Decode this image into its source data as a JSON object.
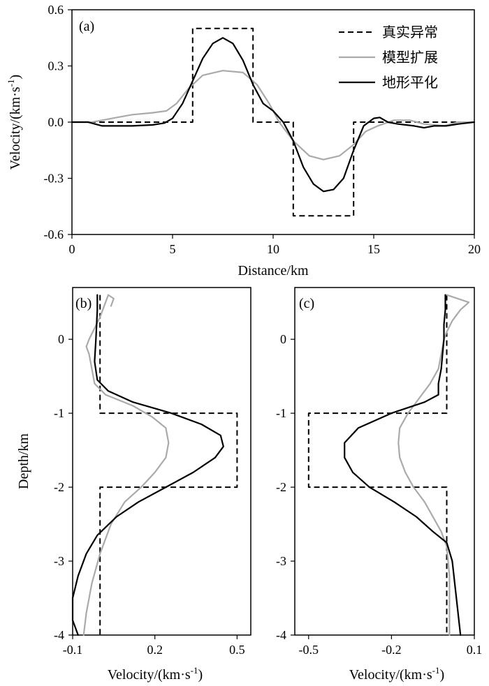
{
  "chart_data": [
    {
      "type": "line",
      "panel_label": "(a)",
      "xlabel": "Distance/km",
      "ylabel": "Velocity/(km·s",
      "ylabel_sup": "-1",
      "ylabel_end": ")",
      "xlim": [
        0,
        20
      ],
      "ylim": [
        -0.6,
        0.6
      ],
      "xticks": [
        0,
        5,
        10,
        15,
        20
      ],
      "xtick_labels": [
        "0",
        "5",
        "10",
        "15",
        "20"
      ],
      "yticks": [
        -0.6,
        -0.3,
        0.0,
        0.3,
        0.6
      ],
      "ytick_labels": [
        "-0.6",
        "-0.3",
        "0.0",
        "0.3",
        "0.6"
      ],
      "legend_position": "top-right",
      "series": [
        {
          "name": "真实异常",
          "color": "#000000",
          "style": "dashed",
          "points": [
            [
              0,
              0
            ],
            [
              6,
              0
            ],
            [
              6,
              0.5
            ],
            [
              9,
              0.5
            ],
            [
              9,
              0
            ],
            [
              11,
              0
            ],
            [
              11,
              -0.5
            ],
            [
              14,
              -0.5
            ],
            [
              14,
              0
            ],
            [
              20,
              0
            ]
          ]
        },
        {
          "name": "模型扩展",
          "color": "#aaaaaa",
          "style": "solid",
          "points": [
            [
              0,
              0
            ],
            [
              1,
              0
            ],
            [
              1.5,
              0.01
            ],
            [
              2,
              0.02
            ],
            [
              3,
              0.04
            ],
            [
              4,
              0.05
            ],
            [
              4.7,
              0.06
            ],
            [
              5.2,
              0.1
            ],
            [
              5.8,
              0.18
            ],
            [
              6.5,
              0.25
            ],
            [
              7.5,
              0.275
            ],
            [
              8.5,
              0.265
            ],
            [
              9.2,
              0.2
            ],
            [
              9.8,
              0.1
            ],
            [
              10.3,
              0.0
            ],
            [
              11,
              -0.1
            ],
            [
              11.8,
              -0.18
            ],
            [
              12.5,
              -0.2
            ],
            [
              13.3,
              -0.18
            ],
            [
              14,
              -0.12
            ],
            [
              14.6,
              -0.05
            ],
            [
              15.2,
              -0.02
            ],
            [
              16,
              0.01
            ],
            [
              16.8,
              0.01
            ],
            [
              17.5,
              -0.01
            ],
            [
              18.5,
              -0.02
            ],
            [
              19.2,
              0
            ],
            [
              20,
              0
            ]
          ]
        },
        {
          "name": "地形平化",
          "color": "#000000",
          "style": "solid",
          "points": [
            [
              0,
              0
            ],
            [
              0.8,
              0
            ],
            [
              1.5,
              -0.02
            ],
            [
              2,
              -0.02
            ],
            [
              3,
              -0.02
            ],
            [
              4,
              -0.015
            ],
            [
              4.6,
              -0.005
            ],
            [
              5,
              0.02
            ],
            [
              5.5,
              0.1
            ],
            [
              6,
              0.22
            ],
            [
              6.5,
              0.34
            ],
            [
              7,
              0.42
            ],
            [
              7.5,
              0.45
            ],
            [
              8,
              0.42
            ],
            [
              8.5,
              0.33
            ],
            [
              9,
              0.2
            ],
            [
              9.5,
              0.1
            ],
            [
              10,
              0.06
            ],
            [
              10.5,
              0
            ],
            [
              11,
              -0.1
            ],
            [
              11.5,
              -0.24
            ],
            [
              12,
              -0.33
            ],
            [
              12.5,
              -0.37
            ],
            [
              13,
              -0.36
            ],
            [
              13.5,
              -0.3
            ],
            [
              14,
              -0.15
            ],
            [
              14.5,
              -0.02
            ],
            [
              15,
              0.02
            ],
            [
              15.3,
              0.025
            ],
            [
              15.7,
              0
            ],
            [
              16.2,
              -0.01
            ],
            [
              17,
              -0.02
            ],
            [
              17.5,
              -0.03
            ],
            [
              18,
              -0.02
            ],
            [
              18.6,
              -0.02
            ],
            [
              19.2,
              -0.01
            ],
            [
              20,
              0
            ]
          ]
        }
      ]
    },
    {
      "type": "line",
      "panel_label": "(b)",
      "xlabel": "Velocity/(km·s",
      "xlabel_sup": "-1",
      "xlabel_end": ")",
      "ylabel": "Depth/km",
      "xlim": [
        -0.1,
        0.55
      ],
      "ylim": [
        -4,
        0.7
      ],
      "xticks": [
        -0.1,
        0.2,
        0.5
      ],
      "xtick_labels": [
        "-0.1",
        "0.2",
        "0.5"
      ],
      "yticks": [
        -4,
        -3,
        -2,
        -1,
        0
      ],
      "ytick_labels": [
        "-4",
        "-3",
        "-2",
        "-1",
        "0"
      ],
      "series": [
        {
          "color": "#000000",
          "style": "dashed",
          "points": [
            [
              0,
              0.6
            ],
            [
              0,
              -1
            ],
            [
              0.5,
              -1
            ],
            [
              0.5,
              -2
            ],
            [
              0,
              -2
            ],
            [
              0,
              -4
            ]
          ]
        },
        {
          "color": "#aaaaaa",
          "style": "solid",
          "points": [
            [
              0.04,
              0.45
            ],
            [
              0.05,
              0.55
            ],
            [
              0.03,
              0.6
            ],
            [
              0.02,
              0.5
            ],
            [
              0.0,
              0.3
            ],
            [
              -0.02,
              0.15
            ],
            [
              -0.04,
              0
            ],
            [
              -0.05,
              -0.1
            ],
            [
              -0.04,
              -0.2
            ],
            [
              -0.03,
              -0.4
            ],
            [
              -0.02,
              -0.6
            ],
            [
              0.02,
              -0.75
            ],
            [
              0.12,
              -0.9
            ],
            [
              0.19,
              -1.05
            ],
            [
              0.24,
              -1.2
            ],
            [
              0.25,
              -1.4
            ],
            [
              0.24,
              -1.6
            ],
            [
              0.2,
              -1.8
            ],
            [
              0.15,
              -2.0
            ],
            [
              0.09,
              -2.2
            ],
            [
              0.04,
              -2.5
            ],
            [
              0.0,
              -2.9
            ],
            [
              -0.03,
              -3.3
            ],
            [
              -0.05,
              -3.7
            ],
            [
              -0.06,
              -4
            ]
          ]
        },
        {
          "color": "#000000",
          "style": "solid",
          "points": [
            [
              -0.01,
              0.6
            ],
            [
              -0.01,
              0.4
            ],
            [
              -0.015,
              0
            ],
            [
              -0.02,
              -0.3
            ],
            [
              -0.01,
              -0.55
            ],
            [
              0.03,
              -0.7
            ],
            [
              0.12,
              -0.85
            ],
            [
              0.26,
              -1.0
            ],
            [
              0.37,
              -1.15
            ],
            [
              0.44,
              -1.3
            ],
            [
              0.45,
              -1.45
            ],
            [
              0.42,
              -1.6
            ],
            [
              0.34,
              -1.8
            ],
            [
              0.24,
              -2.0
            ],
            [
              0.14,
              -2.2
            ],
            [
              0.06,
              -2.4
            ],
            [
              -0.01,
              -2.65
            ],
            [
              -0.05,
              -2.9
            ],
            [
              -0.08,
              -3.2
            ],
            [
              -0.1,
              -3.5
            ],
            [
              -0.1,
              -3.8
            ],
            [
              -0.08,
              -4
            ]
          ]
        }
      ]
    },
    {
      "type": "line",
      "panel_label": "(c)",
      "xlabel": "Velocity/(km·s",
      "xlabel_sup": "-1",
      "xlabel_end": ")",
      "xlim": [
        -0.55,
        0.1
      ],
      "ylim": [
        -4,
        0.7
      ],
      "xticks": [
        -0.5,
        -0.2,
        0.1
      ],
      "xtick_labels": [
        "-0.5",
        "-0.2",
        "0.1"
      ],
      "yticks": [
        -4,
        -3,
        -2,
        -1,
        0
      ],
      "ytick_labels": [
        "-4",
        "-3",
        "-2",
        "-1",
        "0"
      ],
      "series": [
        {
          "color": "#000000",
          "style": "dashed",
          "points": [
            [
              0,
              0.6
            ],
            [
              0,
              -1
            ],
            [
              -0.5,
              -1
            ],
            [
              -0.5,
              -2
            ],
            [
              0,
              -2
            ],
            [
              0,
              -4
            ]
          ]
        },
        {
          "color": "#aaaaaa",
          "style": "solid",
          "points": [
            [
              0.0,
              0.6
            ],
            [
              0.04,
              0.55
            ],
            [
              0.08,
              0.5
            ],
            [
              0.05,
              0.4
            ],
            [
              0.02,
              0.25
            ],
            [
              0,
              0.1
            ],
            [
              -0.01,
              0
            ],
            [
              -0.02,
              -0.2
            ],
            [
              -0.03,
              -0.4
            ],
            [
              -0.06,
              -0.6
            ],
            [
              -0.1,
              -0.8
            ],
            [
              -0.14,
              -1.0
            ],
            [
              -0.17,
              -1.2
            ],
            [
              -0.175,
              -1.4
            ],
            [
              -0.17,
              -1.6
            ],
            [
              -0.15,
              -1.8
            ],
            [
              -0.12,
              -2.0
            ],
            [
              -0.08,
              -2.2
            ],
            [
              -0.05,
              -2.4
            ],
            [
              -0.02,
              -2.6
            ],
            [
              0.0,
              -2.8
            ],
            [
              0.01,
              -3.2
            ],
            [
              0.01,
              -3.6
            ],
            [
              0.01,
              -4
            ]
          ]
        },
        {
          "color": "#000000",
          "style": "solid",
          "points": [
            [
              -0.005,
              0.6
            ],
            [
              -0.005,
              0.4
            ],
            [
              -0.01,
              0.2
            ],
            [
              -0.01,
              0
            ],
            [
              -0.015,
              -0.2
            ],
            [
              -0.02,
              -0.4
            ],
            [
              -0.03,
              -0.6
            ],
            [
              -0.03,
              -0.75
            ],
            [
              -0.08,
              -0.85
            ],
            [
              -0.2,
              -1.0
            ],
            [
              -0.32,
              -1.2
            ],
            [
              -0.37,
              -1.4
            ],
            [
              -0.37,
              -1.6
            ],
            [
              -0.34,
              -1.8
            ],
            [
              -0.28,
              -2.0
            ],
            [
              -0.19,
              -2.2
            ],
            [
              -0.11,
              -2.4
            ],
            [
              -0.05,
              -2.6
            ],
            [
              0.0,
              -2.75
            ],
            [
              0.02,
              -3
            ],
            [
              0.035,
              -3.5
            ],
            [
              0.05,
              -4
            ]
          ]
        }
      ]
    }
  ]
}
